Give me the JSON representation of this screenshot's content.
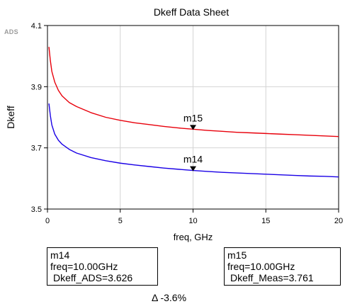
{
  "app_tag": "ADS",
  "chart_data": {
    "type": "line",
    "title": "Dkeff Data Sheet",
    "xlabel": "freq, GHz",
    "ylabel": "Dkeff",
    "xlim": [
      0,
      20
    ],
    "ylim": [
      3.5,
      4.1
    ],
    "x_ticks": [
      0,
      5,
      10,
      15,
      20
    ],
    "y_ticks": [
      3.5,
      3.7,
      3.9,
      4.1
    ],
    "x_tick_labels": [
      "0",
      "5",
      "10",
      "15",
      "20"
    ],
    "y_tick_labels": [
      "3.5",
      "3.7",
      "3.9",
      "4.1"
    ],
    "grid": true,
    "series": [
      {
        "color": "#e8000b",
        "x": [
          0.1,
          0.2,
          0.3,
          0.5,
          0.75,
          1,
          1.5,
          2,
          3,
          4,
          5,
          6,
          7,
          8,
          9,
          10,
          11,
          12,
          13,
          14,
          15,
          16,
          17,
          18,
          19,
          20
        ],
        "y": [
          4.03,
          3.985,
          3.95,
          3.915,
          3.888,
          3.87,
          3.848,
          3.835,
          3.815,
          3.8,
          3.79,
          3.782,
          3.776,
          3.77,
          3.765,
          3.761,
          3.757,
          3.754,
          3.751,
          3.749,
          3.747,
          3.745,
          3.743,
          3.741,
          3.739,
          3.737
        ]
      },
      {
        "color": "#1a00e6",
        "x": [
          0.1,
          0.2,
          0.3,
          0.5,
          0.75,
          1,
          1.5,
          2,
          3,
          4,
          5,
          6,
          7,
          8,
          9,
          10,
          11,
          12,
          13,
          14,
          15,
          16,
          17,
          18,
          19,
          20
        ],
        "y": [
          3.845,
          3.805,
          3.775,
          3.745,
          3.725,
          3.712,
          3.695,
          3.683,
          3.668,
          3.658,
          3.65,
          3.644,
          3.639,
          3.634,
          3.63,
          3.626,
          3.623,
          3.62,
          3.618,
          3.616,
          3.614,
          3.612,
          3.61,
          3.608,
          3.607,
          3.605
        ]
      }
    ],
    "markers": [
      {
        "name": "m15",
        "x": 10,
        "y": 3.761
      },
      {
        "name": "m14",
        "x": 10,
        "y": 3.626
      }
    ]
  },
  "readouts": [
    {
      "id": "m14",
      "name": "m14",
      "freq": "freq=10.00GHz",
      "value": "Dkeff_ADS=3.626"
    },
    {
      "id": "m15",
      "name": "m15",
      "freq": "freq=10.00GHz",
      "value": "Dkeff_Meas=3.761"
    }
  ],
  "delta_text": "Δ -3.6%"
}
